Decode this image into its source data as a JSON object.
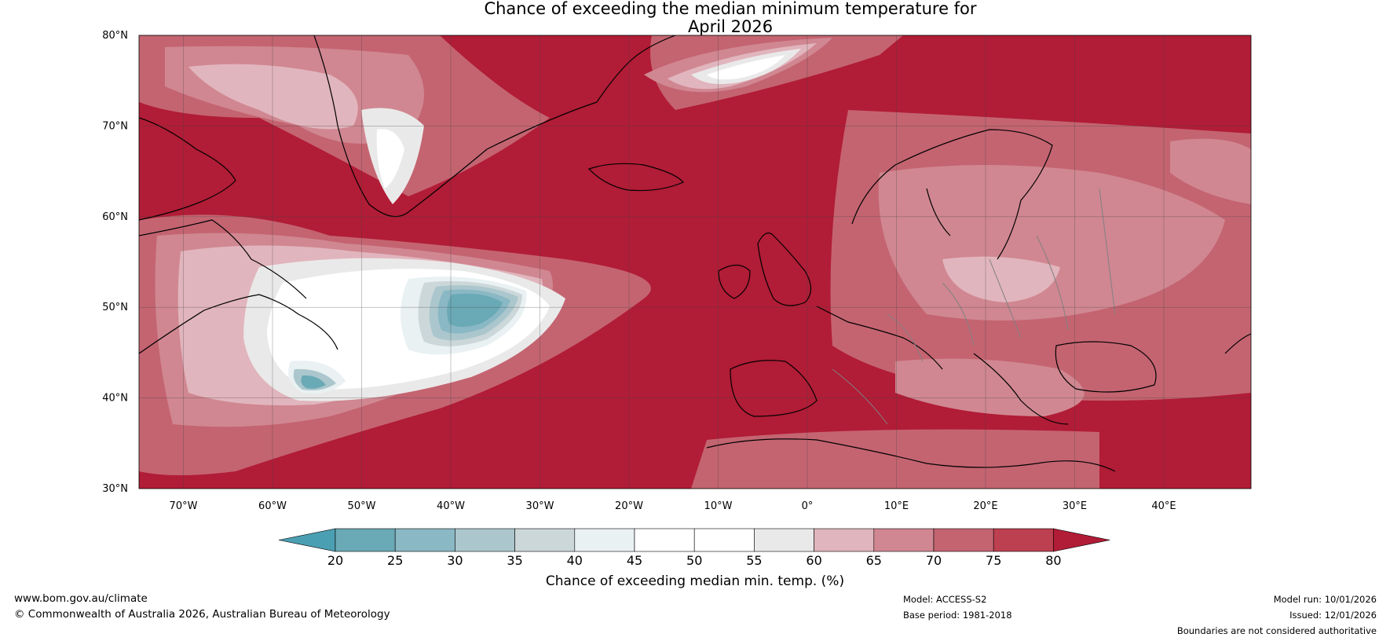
{
  "title": {
    "line1": "Chance of exceeding the median minimum temperature for",
    "line2": "April 2026"
  },
  "map": {
    "lat_labels": [
      "80°N",
      "70°N",
      "60°N",
      "50°N",
      "40°N",
      "30°N"
    ],
    "lon_labels": [
      "70°W",
      "60°W",
      "50°W",
      "40°W",
      "30°W",
      "20°W",
      "10°W",
      "0°",
      "10°E",
      "20°E",
      "30°E",
      "40°E"
    ],
    "base_color": "#b11c36",
    "coast_color": "#000000",
    "border_color": "#808080"
  },
  "colorbar": {
    "label": "Chance of exceeding median min. temp. (%)",
    "ticks": [
      "20",
      "25",
      "30",
      "35",
      "40",
      "45",
      "50",
      "55",
      "60",
      "65",
      "70",
      "75",
      "80"
    ],
    "bin_colors": [
      "#6aa9b6",
      "#8ab8c4",
      "#abc7cd",
      "#ccd7da",
      "#e9f1f2",
      "#ffffff",
      "#ffffff",
      "#eae9e9",
      "#e1b5bd",
      "#d08791",
      "#c46471",
      "#bd4051"
    ],
    "low_color": "#4b9fb2",
    "high_color": "#b11c36"
  },
  "footer": {
    "url": "www.bom.gov.au/climate",
    "copyright": "© Commonwealth of Australia 2026, Australian Bureau of Meteorology",
    "model": "Model: ACCESS-S2",
    "base_period": "Base period: 1981-2018",
    "model_run": "Model run: 10/01/2026",
    "issued": "Issued: 12/01/2026",
    "disclaimer": "Boundaries are not considered authoritative"
  }
}
